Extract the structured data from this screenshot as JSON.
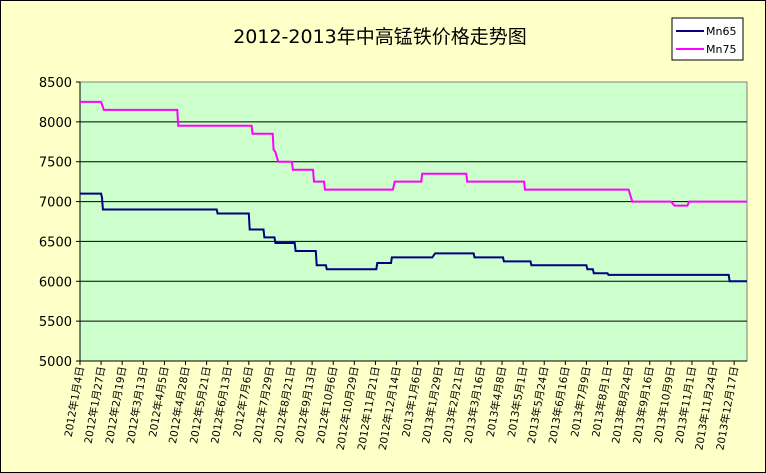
{
  "chart_data": {
    "type": "line",
    "title": "2012-2013年中高锰铁价格走势图",
    "xlabel": "",
    "ylabel": "",
    "ylim": [
      5000,
      8500
    ],
    "yticks": [
      5000,
      5500,
      6000,
      6500,
      7000,
      7500,
      8000,
      8500
    ],
    "grid": true,
    "legend": "top-right",
    "x_ticks": [
      "2012年1月4日",
      "2012年1月27日",
      "2012年2月19日",
      "2012年3月13日",
      "2012年4月5日",
      "2012年4月28日",
      "2012年5月21日",
      "2012年6月13日",
      "2012年7月6日",
      "2012年7月29日",
      "2012年8月21日",
      "2012年9月13日",
      "2012年10月6日",
      "2012年10月29日",
      "2012年11月21日",
      "2012年12月14日",
      "2013年1月6日",
      "2013年1月29日",
      "2013年2月21日",
      "2013年3月16日",
      "2013年4月8日",
      "2013年5月1日",
      "2013年5月24日",
      "2013年6月16日",
      "2013年7月9日",
      "2013年8月1日",
      "2013年8月24日",
      "2013年9月16日",
      "2013年10月9日",
      "2013年11月1日",
      "2013年11月24日",
      "2013年12月17日"
    ],
    "series": [
      {
        "name": "Mn65",
        "color": "#000080",
        "points": [
          [
            "2012-01-04",
            7100
          ],
          [
            "2012-01-27",
            7100
          ],
          [
            "2012-01-28",
            7050
          ],
          [
            "2012-01-29",
            6900
          ],
          [
            "2012-06-01",
            6900
          ],
          [
            "2012-06-02",
            6850
          ],
          [
            "2012-07-06",
            6850
          ],
          [
            "2012-07-07",
            6650
          ],
          [
            "2012-07-22",
            6650
          ],
          [
            "2012-07-23",
            6550
          ],
          [
            "2012-08-03",
            6550
          ],
          [
            "2012-08-04",
            6480
          ],
          [
            "2012-08-25",
            6480
          ],
          [
            "2012-08-26",
            6380
          ],
          [
            "2012-09-17",
            6380
          ],
          [
            "2012-09-18",
            6200
          ],
          [
            "2012-09-28",
            6200
          ],
          [
            "2012-09-29",
            6150
          ],
          [
            "2012-11-22",
            6150
          ],
          [
            "2012-11-23",
            6230
          ],
          [
            "2012-12-08",
            6230
          ],
          [
            "2012-12-09",
            6300
          ],
          [
            "2013-01-22",
            6300
          ],
          [
            "2013-01-25",
            6350
          ],
          [
            "2013-03-08",
            6350
          ],
          [
            "2013-03-09",
            6300
          ],
          [
            "2013-04-09",
            6300
          ],
          [
            "2013-04-10",
            6250
          ],
          [
            "2013-05-09",
            6250
          ],
          [
            "2013-05-10",
            6200
          ],
          [
            "2013-07-09",
            6200
          ],
          [
            "2013-07-10",
            6150
          ],
          [
            "2013-07-16",
            6150
          ],
          [
            "2013-07-17",
            6100
          ],
          [
            "2013-08-01",
            6100
          ],
          [
            "2013-08-02",
            6080
          ],
          [
            "2013-12-11",
            6080
          ],
          [
            "2013-12-12",
            6000
          ],
          [
            "2013-12-31",
            6000
          ]
        ]
      },
      {
        "name": "Mn75",
        "color": "#FF00FF",
        "points": [
          [
            "2012-01-04",
            8250
          ],
          [
            "2012-01-27",
            8250
          ],
          [
            "2012-01-30",
            8150
          ],
          [
            "2012-04-19",
            8150
          ],
          [
            "2012-04-20",
            7950
          ],
          [
            "2012-07-09",
            7950
          ],
          [
            "2012-07-10",
            7850
          ],
          [
            "2012-08-01",
            7850
          ],
          [
            "2012-08-02",
            7650
          ],
          [
            "2012-08-04",
            7620
          ],
          [
            "2012-08-07",
            7500
          ],
          [
            "2012-08-22",
            7500
          ],
          [
            "2012-08-23",
            7400
          ],
          [
            "2012-09-14",
            7400
          ],
          [
            "2012-09-15",
            7250
          ],
          [
            "2012-09-26",
            7250
          ],
          [
            "2012-09-27",
            7150
          ],
          [
            "2012-12-10",
            7150
          ],
          [
            "2012-12-12",
            7250
          ],
          [
            "2013-01-10",
            7250
          ],
          [
            "2013-01-11",
            7350
          ],
          [
            "2013-02-28",
            7350
          ],
          [
            "2013-03-01",
            7250
          ],
          [
            "2013-05-02",
            7250
          ],
          [
            "2013-05-03",
            7150
          ],
          [
            "2013-08-24",
            7150
          ],
          [
            "2013-08-28",
            7000
          ],
          [
            "2013-10-09",
            7000
          ],
          [
            "2013-10-13",
            6950
          ],
          [
            "2013-10-27",
            6950
          ],
          [
            "2013-10-29",
            7000
          ],
          [
            "2013-12-31",
            7000
          ]
        ]
      }
    ]
  }
}
